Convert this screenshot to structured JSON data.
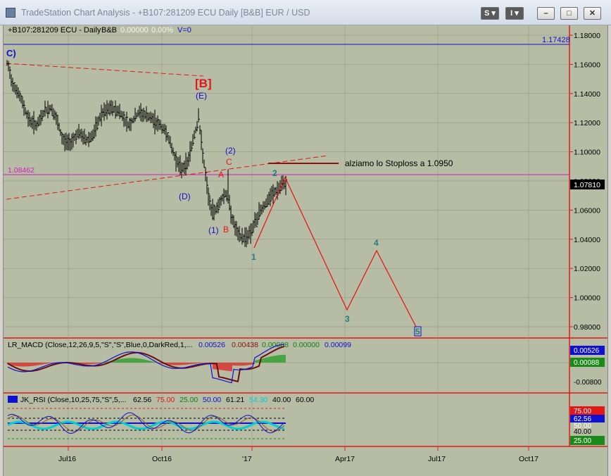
{
  "window": {
    "title": "TradeStation Chart Analysis - +B107:281209 ECU Daily [B&B] EUR / USD",
    "btn_s": "S",
    "btn_i": "I",
    "btn_min": "–",
    "btn_max": "□",
    "btn_close": "✕"
  },
  "header": {
    "symbol": "+B107:281209 ECU - Daily",
    "study": "B&B",
    "v1": "0.00000",
    "v2": "0.00%",
    "v3": "V=0"
  },
  "price_axis": {
    "ticks": [
      "1.18000",
      "1.16000",
      "1.14000",
      "1.12000",
      "1.10000",
      "1.08000",
      "1.06000",
      "1.04000",
      "1.02000",
      "1.00000",
      "0.98000"
    ],
    "last_price": "1.07810",
    "hline_blue": "1.17428",
    "hline_magenta": "1.08462"
  },
  "annotations": {
    "c_top": "C)",
    "b_big": "[B]",
    "e": "(E)",
    "d": "(D)",
    "one_p": "(1)",
    "two_p": "(2)",
    "a": "A",
    "c_red": "C",
    "b_red": "B",
    "w1": "1",
    "w2": "2",
    "w3": "3",
    "w4": "4",
    "w5": "5",
    "note": "alziamo lo  Stoploss a 1.0950"
  },
  "macd": {
    "label": "LR_MACD (Close,12,26,9,5,\"S\",\"S\",Blue,0,DarkRed,1,...",
    "v1": "0.00526",
    "v2": "0.00438",
    "v3": "0.00088",
    "v4": "0.00000",
    "v5": "0.00099",
    "ticks": [
      "0.00526",
      "0.00088",
      "-0.00800"
    ]
  },
  "rsi": {
    "label": "JK_RSI (Close,10,25,75,\"S\",5,...",
    "v1": "62.56",
    "v2": "75.00",
    "v3": "25.00",
    "v4": "50.00",
    "v5": "61.21",
    "v6": "54.30",
    "v7": "40.00",
    "v8": "60.00",
    "ticks": [
      "75.00",
      "62.56",
      "50.00",
      "40.00",
      "25.00"
    ]
  },
  "time_axis": [
    "Jul16",
    "Oct16",
    "'17",
    "Apr17",
    "Jul17",
    "Oct17"
  ],
  "colors": {
    "background": "#b7bca4",
    "bars": "#000000",
    "wave_red": "#e81010",
    "blue": "#1010d0",
    "teal": "#1f7f7f",
    "magenta": "#d020c0"
  }
}
